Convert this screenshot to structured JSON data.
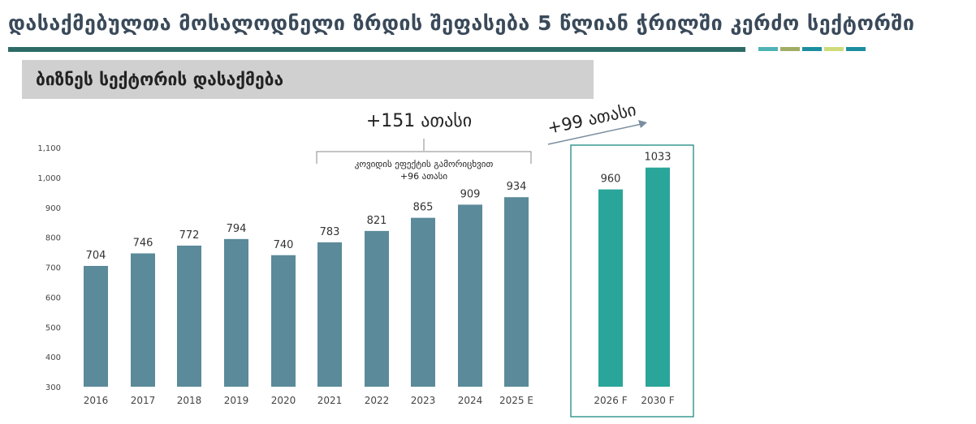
{
  "title": "დასაქმებულთა მოსალოდნელი ზრდის შეფასება 5 წლიან ჭრილში კერძო სექტორში",
  "subtitle": "ბიზნეს სექტორის დასაქმება",
  "colors": {
    "rule": "#2c6b66",
    "dashes": [
      "#4fb3b5",
      "#a0ad63",
      "#1b8fa0",
      "#cddc7a",
      "#1b8fa0"
    ],
    "bar": "#5b8a9a",
    "forecast_bar": "#2aa59a",
    "frame": "#3a9a92"
  },
  "annotations": {
    "total": "+151 ათასი",
    "covid_line1": "კოვიდის ეფექტის გამორიცხვით",
    "covid_line2": "+96 ათასი",
    "forecast": "+99 ათასი"
  },
  "chart_data": {
    "type": "bar",
    "categories": [
      "2016",
      "2017",
      "2018",
      "2019",
      "2020",
      "2021",
      "2022",
      "2023",
      "2024",
      "2025 E",
      "2026 F",
      "2030 F"
    ],
    "values": [
      704,
      746,
      772,
      794,
      740,
      783,
      821,
      865,
      909,
      934,
      960,
      1033
    ],
    "forecast": [
      false,
      false,
      false,
      false,
      false,
      false,
      false,
      false,
      false,
      false,
      true,
      true
    ],
    "yticks": [
      300,
      400,
      500,
      600,
      700,
      800,
      900,
      1000,
      1100
    ],
    "ytick_labels": [
      "300",
      "400",
      "500",
      "600",
      "700",
      "800",
      "900",
      "1,000",
      "1,100"
    ],
    "ylim": [
      300,
      1100
    ],
    "grid": false
  }
}
